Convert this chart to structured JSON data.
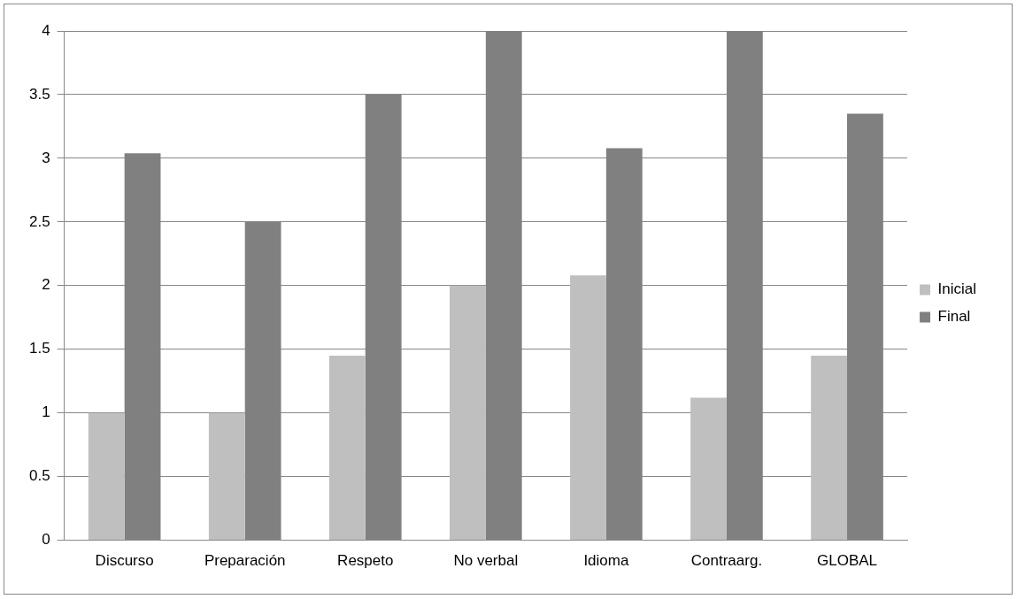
{
  "chart_data": {
    "type": "bar",
    "categories": [
      "Discurso",
      "Preparación",
      "Respeto",
      "No verbal",
      "Idioma",
      "Contraarg.",
      "GLOBAL"
    ],
    "series": [
      {
        "name": "Inicial",
        "color": "#bfbfbf",
        "values": [
          1.0,
          1.0,
          1.45,
          2.0,
          2.08,
          1.12,
          1.45
        ]
      },
      {
        "name": "Final",
        "color": "#808080",
        "values": [
          3.04,
          2.5,
          3.5,
          4.0,
          3.08,
          4.0,
          3.35
        ]
      }
    ],
    "ylim": [
      0,
      4
    ],
    "yticks": [
      0,
      0.5,
      1,
      1.5,
      2,
      2.5,
      3,
      3.5,
      4
    ],
    "grid": "y",
    "legend": "right"
  }
}
